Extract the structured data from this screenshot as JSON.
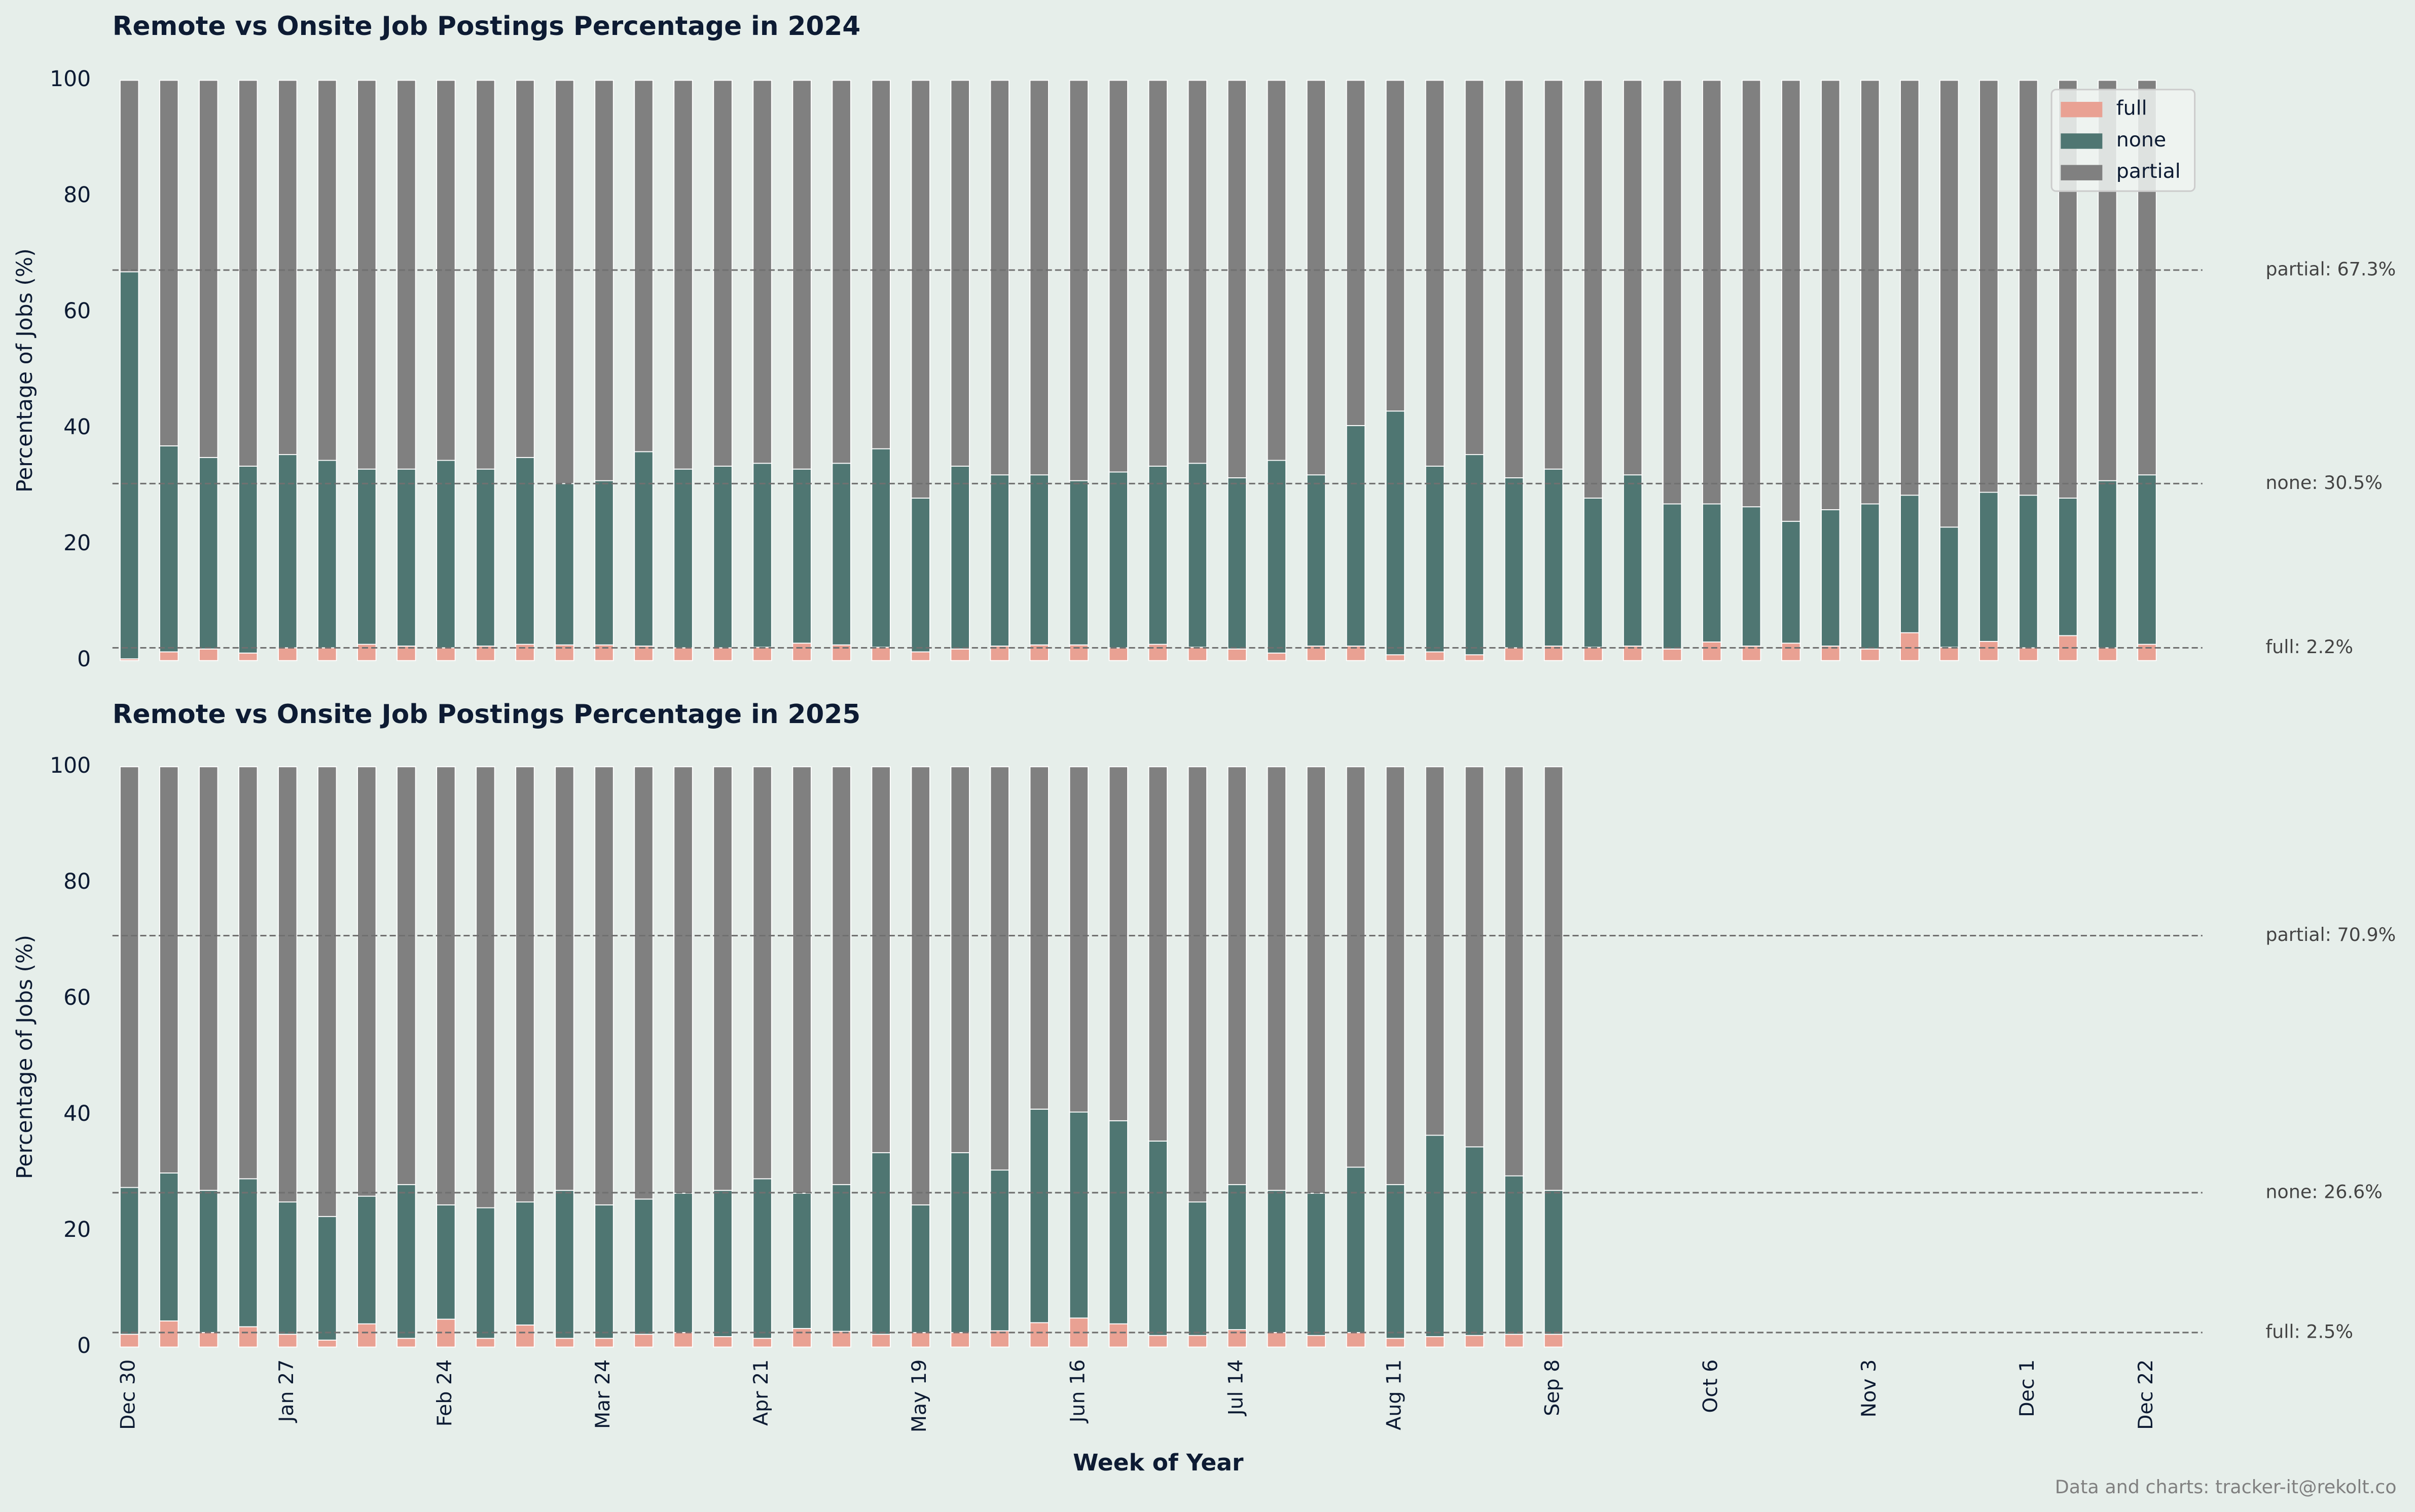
{
  "chart_data": [
    {
      "type": "bar",
      "stacked": true,
      "title": "Remote vs Onsite Job Postings Percentage in 2024",
      "ylabel": "Percentage of Jobs (%)",
      "ylim": [
        0,
        100
      ],
      "yticks": [
        0,
        20,
        40,
        60,
        80,
        100
      ],
      "legend": "upper right",
      "series": [
        {
          "name": "full",
          "color": "#e9a193",
          "values": [
            0.3,
            1.5,
            2,
            1.3,
            2.2,
            2.2,
            2.8,
            2.5,
            2.2,
            2.5,
            2.8,
            2.7,
            2.7,
            2.5,
            2.2,
            2.2,
            2.3,
            3,
            2.7,
            2.3,
            1.5,
            2,
            2.5,
            2.7,
            2.7,
            2.2,
            2.8,
            2.3,
            2,
            1.3,
            2.5,
            2.5,
            1,
            1.5,
            1,
            2.2,
            2.5,
            2.3,
            2.5,
            2,
            3.2,
            2.5,
            3,
            2.5,
            2,
            4.8,
            2.3,
            3.3,
            2.2,
            4.3,
            2.2,
            2.8
          ]
        },
        {
          "name": "none",
          "color": "#4f7672",
          "values": [
            66.7,
            35.5,
            33,
            32.2,
            33.3,
            32.3,
            30.2,
            30.5,
            32.3,
            30.5,
            32.2,
            27.8,
            28.3,
            33.5,
            30.8,
            31.3,
            31.7,
            30,
            31.3,
            34.2,
            26.5,
            31.5,
            29.5,
            29.3,
            28.3,
            30.3,
            30.7,
            31.7,
            29.5,
            33.2,
            29.5,
            38,
            42,
            32,
            34.5,
            29.3,
            30.5,
            25.7,
            29.5,
            25,
            23.8,
            24,
            21,
            23.5,
            25,
            23.7,
            20.7,
            25.7,
            26.3,
            23.7,
            28.8,
            29.2
          ]
        },
        {
          "name": "partial",
          "color": "#808080",
          "values": [
            33,
            63,
            65,
            66.5,
            64.5,
            65.5,
            67,
            67,
            65.5,
            67,
            65,
            69.5,
            69,
            64,
            67,
            66.5,
            66,
            67,
            66,
            63.5,
            72,
            66.5,
            68,
            68,
            69,
            67.5,
            66.5,
            66,
            68.5,
            65.5,
            68,
            59.5,
            57,
            66.5,
            64.5,
            68.5,
            67,
            72,
            68,
            73,
            73,
            73.5,
            76,
            74,
            73,
            71.5,
            77,
            71,
            71.5,
            72,
            69,
            68
          ]
        }
      ],
      "reference_lines": [
        {
          "value": 67.3,
          "label": "partial: 67.3%"
        },
        {
          "value": 30.5,
          "label": "none: 30.5%"
        },
        {
          "value": 2.2,
          "label": "full: 2.2%"
        }
      ]
    },
    {
      "type": "bar",
      "stacked": true,
      "title": "Remote vs Onsite Job Postings Percentage in 2025",
      "ylabel": "Percentage of Jobs (%)",
      "xlabel": "Week of Year",
      "ylim": [
        0,
        100
      ],
      "yticks": [
        0,
        20,
        40,
        60,
        80,
        100
      ],
      "categories": [
        "Dec 30",
        null,
        null,
        null,
        "Jan 27",
        null,
        null,
        null,
        "Feb 24",
        null,
        null,
        null,
        "Mar 24",
        null,
        null,
        null,
        "Apr 21",
        null,
        null,
        null,
        "May 19",
        null,
        null,
        null,
        "Jun 16",
        null,
        null,
        null,
        "Jul 14",
        null,
        null,
        null,
        "Aug 11",
        null,
        null,
        null,
        "Sep 8",
        null,
        null,
        null,
        "Oct 6",
        null,
        null,
        null,
        "Nov 3",
        null,
        null,
        null,
        "Dec 1",
        null,
        null,
        "Dec 22"
      ],
      "series": [
        {
          "name": "full",
          "color": "#e9a193",
          "values": [
            2.2,
            4.5,
            2.5,
            3.5,
            2.2,
            1.2,
            4,
            1.5,
            4.8,
            1.5,
            3.8,
            1.5,
            1.5,
            2.2,
            2.5,
            1.8,
            1.5,
            3.2,
            2.7,
            2.2,
            2.5,
            2.5,
            2.8,
            4.2,
            5,
            4,
            2,
            2,
            3,
            2.5,
            2,
            2.5,
            1.5,
            1.8,
            2,
            2.2,
            2.2,
            null,
            null,
            null,
            null,
            null,
            null,
            null,
            null,
            null,
            null,
            null,
            null,
            null,
            null,
            null
          ]
        },
        {
          "name": "none",
          "color": "#4f7672",
          "values": [
            25.3,
            25.5,
            24.5,
            25.5,
            22.8,
            21.3,
            22,
            26.5,
            19.7,
            22.5,
            21.2,
            25.5,
            23,
            23.3,
            24,
            25.2,
            27.5,
            23.3,
            25.3,
            31.3,
            22,
            31,
            27.7,
            36.8,
            35.5,
            35,
            33.5,
            23,
            25,
            24.5,
            24.5,
            28.5,
            26.5,
            34.7,
            32.5,
            27.3,
            24.8,
            null,
            null,
            null,
            null,
            null,
            null,
            null,
            null,
            null,
            null,
            null,
            null,
            null,
            null,
            null
          ]
        },
        {
          "name": "partial",
          "color": "#808080",
          "values": [
            72.5,
            70,
            73,
            71,
            75,
            77.5,
            74,
            72,
            75.5,
            76,
            75,
            73,
            75.5,
            74.5,
            73.5,
            73,
            71,
            73.5,
            72,
            66.5,
            75.5,
            66.5,
            69.5,
            59,
            59.5,
            61,
            64.5,
            75,
            72,
            73,
            73.5,
            69,
            72,
            63.5,
            65.5,
            70.5,
            73,
            null,
            null,
            null,
            null,
            null,
            null,
            null,
            null,
            null,
            null,
            null,
            null,
            null,
            null,
            null
          ]
        }
      ],
      "reference_lines": [
        {
          "value": 70.9,
          "label": "partial: 70.9%"
        },
        {
          "value": 26.6,
          "label": "none: 26.6%"
        },
        {
          "value": 2.5,
          "label": "full: 2.5%"
        }
      ]
    }
  ],
  "footer": "Data and charts: tracker-it@rekolt.co"
}
